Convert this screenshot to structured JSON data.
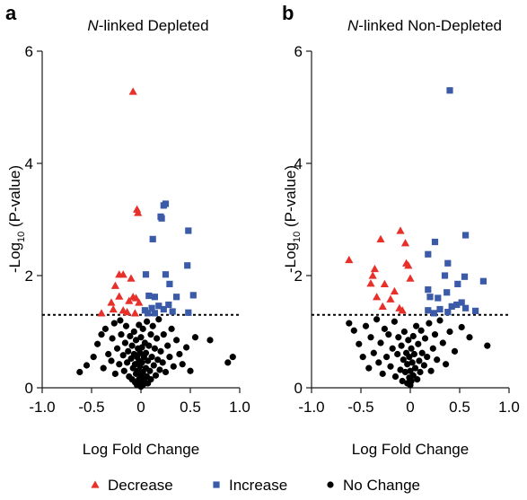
{
  "colors": {
    "decrease": "#e8302a",
    "increase": "#3b5ba9",
    "nochange": "#000000"
  },
  "legend": [
    {
      "key": "decrease",
      "label": "Decrease",
      "marker": "triangle"
    },
    {
      "key": "increase",
      "label": "Increase",
      "marker": "square"
    },
    {
      "key": "nochange",
      "label": "No Change",
      "marker": "circle"
    }
  ],
  "chart_data": [
    {
      "type": "scatter",
      "panel_label": "a",
      "title_italic": "N",
      "title_rest": "-linked Depleted",
      "xlabel": "Log Fold Change",
      "ylabel_pre": "-Log",
      "ylabel_sub": "10",
      "ylabel_post": " (P-value)",
      "xlim": [
        -1.0,
        1.0
      ],
      "ylim": [
        0,
        6
      ],
      "xticks": [
        "-1.0",
        "-0.5",
        "0",
        "0.5",
        "1.0"
      ],
      "xtick_values": [
        -1.0,
        -0.5,
        0,
        0.5,
        1.0
      ],
      "yticks": [
        "0",
        "2",
        "4",
        "6"
      ],
      "ytick_values": [
        0,
        2,
        4,
        6
      ],
      "threshold": 1.3,
      "series": [
        {
          "key": "decrease",
          "points": [
            [
              -0.08,
              5.28
            ],
            [
              -0.04,
              3.18
            ],
            [
              -0.03,
              3.12
            ],
            [
              -0.22,
              2.02
            ],
            [
              -0.18,
              2.02
            ],
            [
              -0.1,
              1.95
            ],
            [
              -0.26,
              1.82
            ],
            [
              -0.22,
              1.63
            ],
            [
              -0.08,
              1.62
            ],
            [
              -0.05,
              1.6
            ],
            [
              -0.12,
              1.55
            ],
            [
              -0.02,
              1.52
            ],
            [
              -0.3,
              1.52
            ],
            [
              -0.28,
              1.4
            ],
            [
              -0.18,
              1.38
            ],
            [
              -0.14,
              1.35
            ],
            [
              -0.4,
              1.33
            ],
            [
              -0.06,
              1.33
            ]
          ]
        },
        {
          "key": "increase",
          "points": [
            [
              0.25,
              3.28
            ],
            [
              0.23,
              3.25
            ],
            [
              0.2,
              3.05
            ],
            [
              0.21,
              3.02
            ],
            [
              0.12,
              2.65
            ],
            [
              0.48,
              2.8
            ],
            [
              0.05,
              2.02
            ],
            [
              0.25,
              2.02
            ],
            [
              0.47,
              2.18
            ],
            [
              0.29,
              1.85
            ],
            [
              0.08,
              1.64
            ],
            [
              0.14,
              1.62
            ],
            [
              0.36,
              1.62
            ],
            [
              0.53,
              1.65
            ],
            [
              0.28,
              1.48
            ],
            [
              0.18,
              1.46
            ],
            [
              0.11,
              1.42
            ],
            [
              0.23,
              1.4
            ],
            [
              0.04,
              1.38
            ],
            [
              0.32,
              1.36
            ],
            [
              0.48,
              1.34
            ],
            [
              0.14,
              1.33
            ],
            [
              0.07,
              1.33
            ]
          ]
        },
        {
          "key": "nochange",
          "points": [
            [
              -0.62,
              0.28
            ],
            [
              -0.55,
              0.4
            ],
            [
              -0.48,
              0.55
            ],
            [
              -0.44,
              0.78
            ],
            [
              -0.4,
              0.95
            ],
            [
              -0.38,
              0.35
            ],
            [
              -0.36,
              1.05
            ],
            [
              -0.33,
              0.6
            ],
            [
              -0.3,
              0.48
            ],
            [
              -0.29,
              0.88
            ],
            [
              -0.27,
              1.15
            ],
            [
              -0.26,
              0.25
            ],
            [
              -0.24,
              0.7
            ],
            [
              -0.22,
              0.42
            ],
            [
              -0.21,
              1.2
            ],
            [
              -0.2,
              0.95
            ],
            [
              -0.18,
              0.58
            ],
            [
              -0.17,
              0.3
            ],
            [
              -0.16,
              0.8
            ],
            [
              -0.15,
              1.1
            ],
            [
              -0.14,
              0.45
            ],
            [
              -0.13,
              0.65
            ],
            [
              -0.12,
              0.2
            ],
            [
              -0.11,
              0.92
            ],
            [
              -0.1,
              0.52
            ],
            [
              -0.09,
              0.15
            ],
            [
              -0.09,
              0.75
            ],
            [
              -0.08,
              0.35
            ],
            [
              -0.07,
              1.0
            ],
            [
              -0.07,
              0.6
            ],
            [
              -0.06,
              0.1
            ],
            [
              -0.06,
              0.42
            ],
            [
              -0.05,
              0.85
            ],
            [
              -0.05,
              0.25
            ],
            [
              -0.04,
              0.55
            ],
            [
              -0.04,
              0.05
            ],
            [
              -0.03,
              0.7
            ],
            [
              -0.03,
              0.3
            ],
            [
              -0.02,
              0.15
            ],
            [
              -0.02,
              0.48
            ],
            [
              -0.02,
              1.12
            ],
            [
              -0.01,
              0.08
            ],
            [
              -0.01,
              0.38
            ],
            [
              -0.01,
              0.62
            ],
            [
              0.0,
              0.02
            ],
            [
              0.0,
              0.22
            ],
            [
              0.0,
              0.9
            ],
            [
              0.01,
              0.12
            ],
            [
              0.01,
              0.45
            ],
            [
              0.01,
              0.72
            ],
            [
              0.02,
              0.05
            ],
            [
              0.02,
              0.28
            ],
            [
              0.02,
              1.05
            ],
            [
              0.03,
              0.18
            ],
            [
              0.03,
              0.55
            ],
            [
              0.04,
              0.1
            ],
            [
              0.04,
              0.8
            ],
            [
              0.05,
              0.35
            ],
            [
              0.05,
              0.62
            ],
            [
              0.06,
              0.2
            ],
            [
              0.06,
              1.18
            ],
            [
              0.07,
              0.48
            ],
            [
              0.07,
              0.08
            ],
            [
              0.08,
              0.75
            ],
            [
              0.09,
              0.3
            ],
            [
              0.1,
              0.95
            ],
            [
              0.1,
              0.15
            ],
            [
              0.11,
              0.55
            ],
            [
              0.12,
              1.1
            ],
            [
              0.13,
              0.4
            ],
            [
              0.14,
              0.7
            ],
            [
              0.15,
              0.22
            ],
            [
              0.16,
              0.88
            ],
            [
              0.17,
              0.5
            ],
            [
              0.18,
              1.22
            ],
            [
              0.19,
              0.32
            ],
            [
              0.2,
              0.65
            ],
            [
              0.22,
              0.45
            ],
            [
              0.23,
              0.95
            ],
            [
              0.25,
              0.28
            ],
            [
              0.27,
              0.75
            ],
            [
              0.29,
              0.55
            ],
            [
              0.31,
              1.05
            ],
            [
              0.33,
              0.38
            ],
            [
              0.36,
              0.85
            ],
            [
              0.39,
              0.6
            ],
            [
              0.42,
              0.42
            ],
            [
              0.46,
              0.72
            ],
            [
              0.5,
              0.3
            ],
            [
              0.55,
              0.9
            ],
            [
              0.7,
              0.85
            ],
            [
              0.88,
              0.45
            ],
            [
              0.93,
              0.55
            ]
          ]
        }
      ]
    },
    {
      "type": "scatter",
      "panel_label": "b",
      "title_italic": "N",
      "title_rest": "-linked Non-Depleted",
      "xlabel": "Log Fold Change",
      "ylabel_pre": "-Log",
      "ylabel_sub": "10",
      "ylabel_post": " (P-value)",
      "xlim": [
        -1.0,
        1.0
      ],
      "ylim": [
        0,
        6
      ],
      "xticks": [
        "-1.0",
        "-0.5",
        "0",
        "0.5",
        "1.0"
      ],
      "xtick_values": [
        -1.0,
        -0.5,
        0,
        0.5,
        1.0
      ],
      "yticks": [
        "0",
        "2",
        "4",
        "6"
      ],
      "ytick_values": [
        0,
        2,
        4,
        6
      ],
      "threshold": 1.3,
      "series": [
        {
          "key": "decrease",
          "points": [
            [
              -0.1,
              2.8
            ],
            [
              -0.3,
              2.65
            ],
            [
              -0.05,
              2.58
            ],
            [
              -0.62,
              2.28
            ],
            [
              -0.36,
              2.12
            ],
            [
              -0.38,
              2.0
            ],
            [
              -0.04,
              2.22
            ],
            [
              -0.02,
              2.18
            ],
            [
              0.0,
              1.95
            ],
            [
              -0.4,
              1.86
            ],
            [
              -0.26,
              1.85
            ],
            [
              -0.16,
              1.72
            ],
            [
              -0.34,
              1.62
            ],
            [
              -0.2,
              1.58
            ],
            [
              -0.28,
              1.45
            ],
            [
              -0.11,
              1.42
            ],
            [
              -0.08,
              1.38
            ]
          ]
        },
        {
          "key": "increase",
          "points": [
            [
              0.4,
              5.3
            ],
            [
              0.56,
              2.72
            ],
            [
              0.25,
              2.6
            ],
            [
              0.18,
              2.38
            ],
            [
              0.38,
              2.22
            ],
            [
              0.35,
              2.0
            ],
            [
              0.55,
              1.98
            ],
            [
              0.74,
              1.9
            ],
            [
              0.48,
              1.85
            ],
            [
              0.18,
              1.75
            ],
            [
              0.37,
              1.7
            ],
            [
              0.2,
              1.62
            ],
            [
              0.28,
              1.6
            ],
            [
              0.52,
              1.52
            ],
            [
              0.47,
              1.48
            ],
            [
              0.42,
              1.45
            ],
            [
              0.56,
              1.42
            ],
            [
              0.3,
              1.4
            ],
            [
              0.18,
              1.38
            ],
            [
              0.66,
              1.37
            ],
            [
              0.38,
              1.35
            ],
            [
              0.24,
              1.33
            ]
          ]
        },
        {
          "key": "nochange",
          "points": [
            [
              -0.62,
              1.15
            ],
            [
              -0.57,
              1.02
            ],
            [
              -0.52,
              0.78
            ],
            [
              -0.48,
              0.55
            ],
            [
              -0.45,
              1.1
            ],
            [
              -0.42,
              0.35
            ],
            [
              -0.4,
              0.9
            ],
            [
              -0.37,
              0.62
            ],
            [
              -0.34,
              1.22
            ],
            [
              -0.32,
              0.45
            ],
            [
              -0.3,
              0.8
            ],
            [
              -0.28,
              0.25
            ],
            [
              -0.26,
              1.05
            ],
            [
              -0.24,
              0.55
            ],
            [
              -0.22,
              0.95
            ],
            [
              -0.2,
              0.38
            ],
            [
              -0.18,
              0.7
            ],
            [
              -0.16,
              1.18
            ],
            [
              -0.15,
              0.2
            ],
            [
              -0.13,
              0.6
            ],
            [
              -0.12,
              0.9
            ],
            [
              -0.1,
              0.32
            ],
            [
              -0.09,
              0.75
            ],
            [
              -0.08,
              0.12
            ],
            [
              -0.07,
              0.5
            ],
            [
              -0.06,
              1.0
            ],
            [
              -0.05,
              0.28
            ],
            [
              -0.04,
              0.62
            ],
            [
              -0.03,
              0.08
            ],
            [
              -0.03,
              0.42
            ],
            [
              -0.02,
              0.85
            ],
            [
              -0.01,
              0.18
            ],
            [
              -0.01,
              0.55
            ],
            [
              0.0,
              0.05
            ],
            [
              0.0,
              0.3
            ],
            [
              0.01,
              0.7
            ],
            [
              0.01,
              0.12
            ],
            [
              0.02,
              0.45
            ],
            [
              0.03,
              0.92
            ],
            [
              0.03,
              0.22
            ],
            [
              0.04,
              0.6
            ],
            [
              0.05,
              0.35
            ],
            [
              0.06,
              1.1
            ],
            [
              0.07,
              0.15
            ],
            [
              0.08,
              0.78
            ],
            [
              0.09,
              0.48
            ],
            [
              0.1,
              0.28
            ],
            [
              0.11,
              1.02
            ],
            [
              0.12,
              0.62
            ],
            [
              0.14,
              0.4
            ],
            [
              0.15,
              0.88
            ],
            [
              0.17,
              0.55
            ],
            [
              0.19,
              1.15
            ],
            [
              0.21,
              0.3
            ],
            [
              0.23,
              0.7
            ],
            [
              0.25,
              0.95
            ],
            [
              0.27,
              0.5
            ],
            [
              0.3,
              1.2
            ],
            [
              0.33,
              0.8
            ],
            [
              0.36,
              0.42
            ],
            [
              0.4,
              1.0
            ],
            [
              0.45,
              0.65
            ],
            [
              0.52,
              1.08
            ],
            [
              0.6,
              0.9
            ],
            [
              0.78,
              0.75
            ]
          ]
        }
      ]
    }
  ]
}
